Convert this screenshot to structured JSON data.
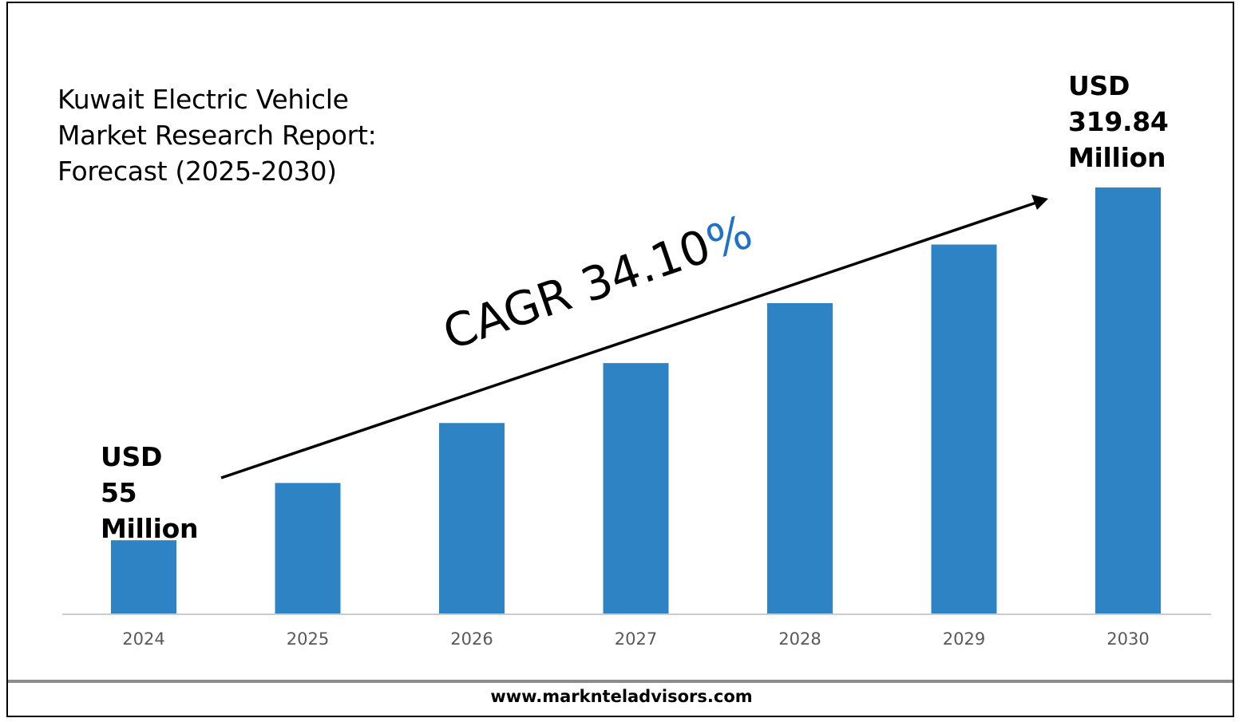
{
  "title_lines": [
    "Kuwait Electric Vehicle",
    "Market Research Report:",
    "Forecast (2025-2030)"
  ],
  "callouts": {
    "start": [
      "USD",
      "55",
      "Million"
    ],
    "end": [
      "USD",
      "319.84",
      "Million"
    ]
  },
  "cagr": {
    "label": "CAGR 34.10",
    "symbol": "%"
  },
  "website": "www.marknteladvisors.com",
  "colors": {
    "bar": "#2e83c5",
    "cagr_percent": "#1f72c4",
    "axis": "#cccccc",
    "tick_label": "#595959"
  },
  "chart_data": {
    "type": "bar",
    "categories": [
      "2024",
      "2025",
      "2026",
      "2027",
      "2028",
      "2029",
      "2030"
    ],
    "values": [
      55,
      98,
      143,
      188,
      233,
      277,
      319.84
    ],
    "ylim": [
      0,
      330
    ],
    "grid": false,
    "legend": "none"
  }
}
